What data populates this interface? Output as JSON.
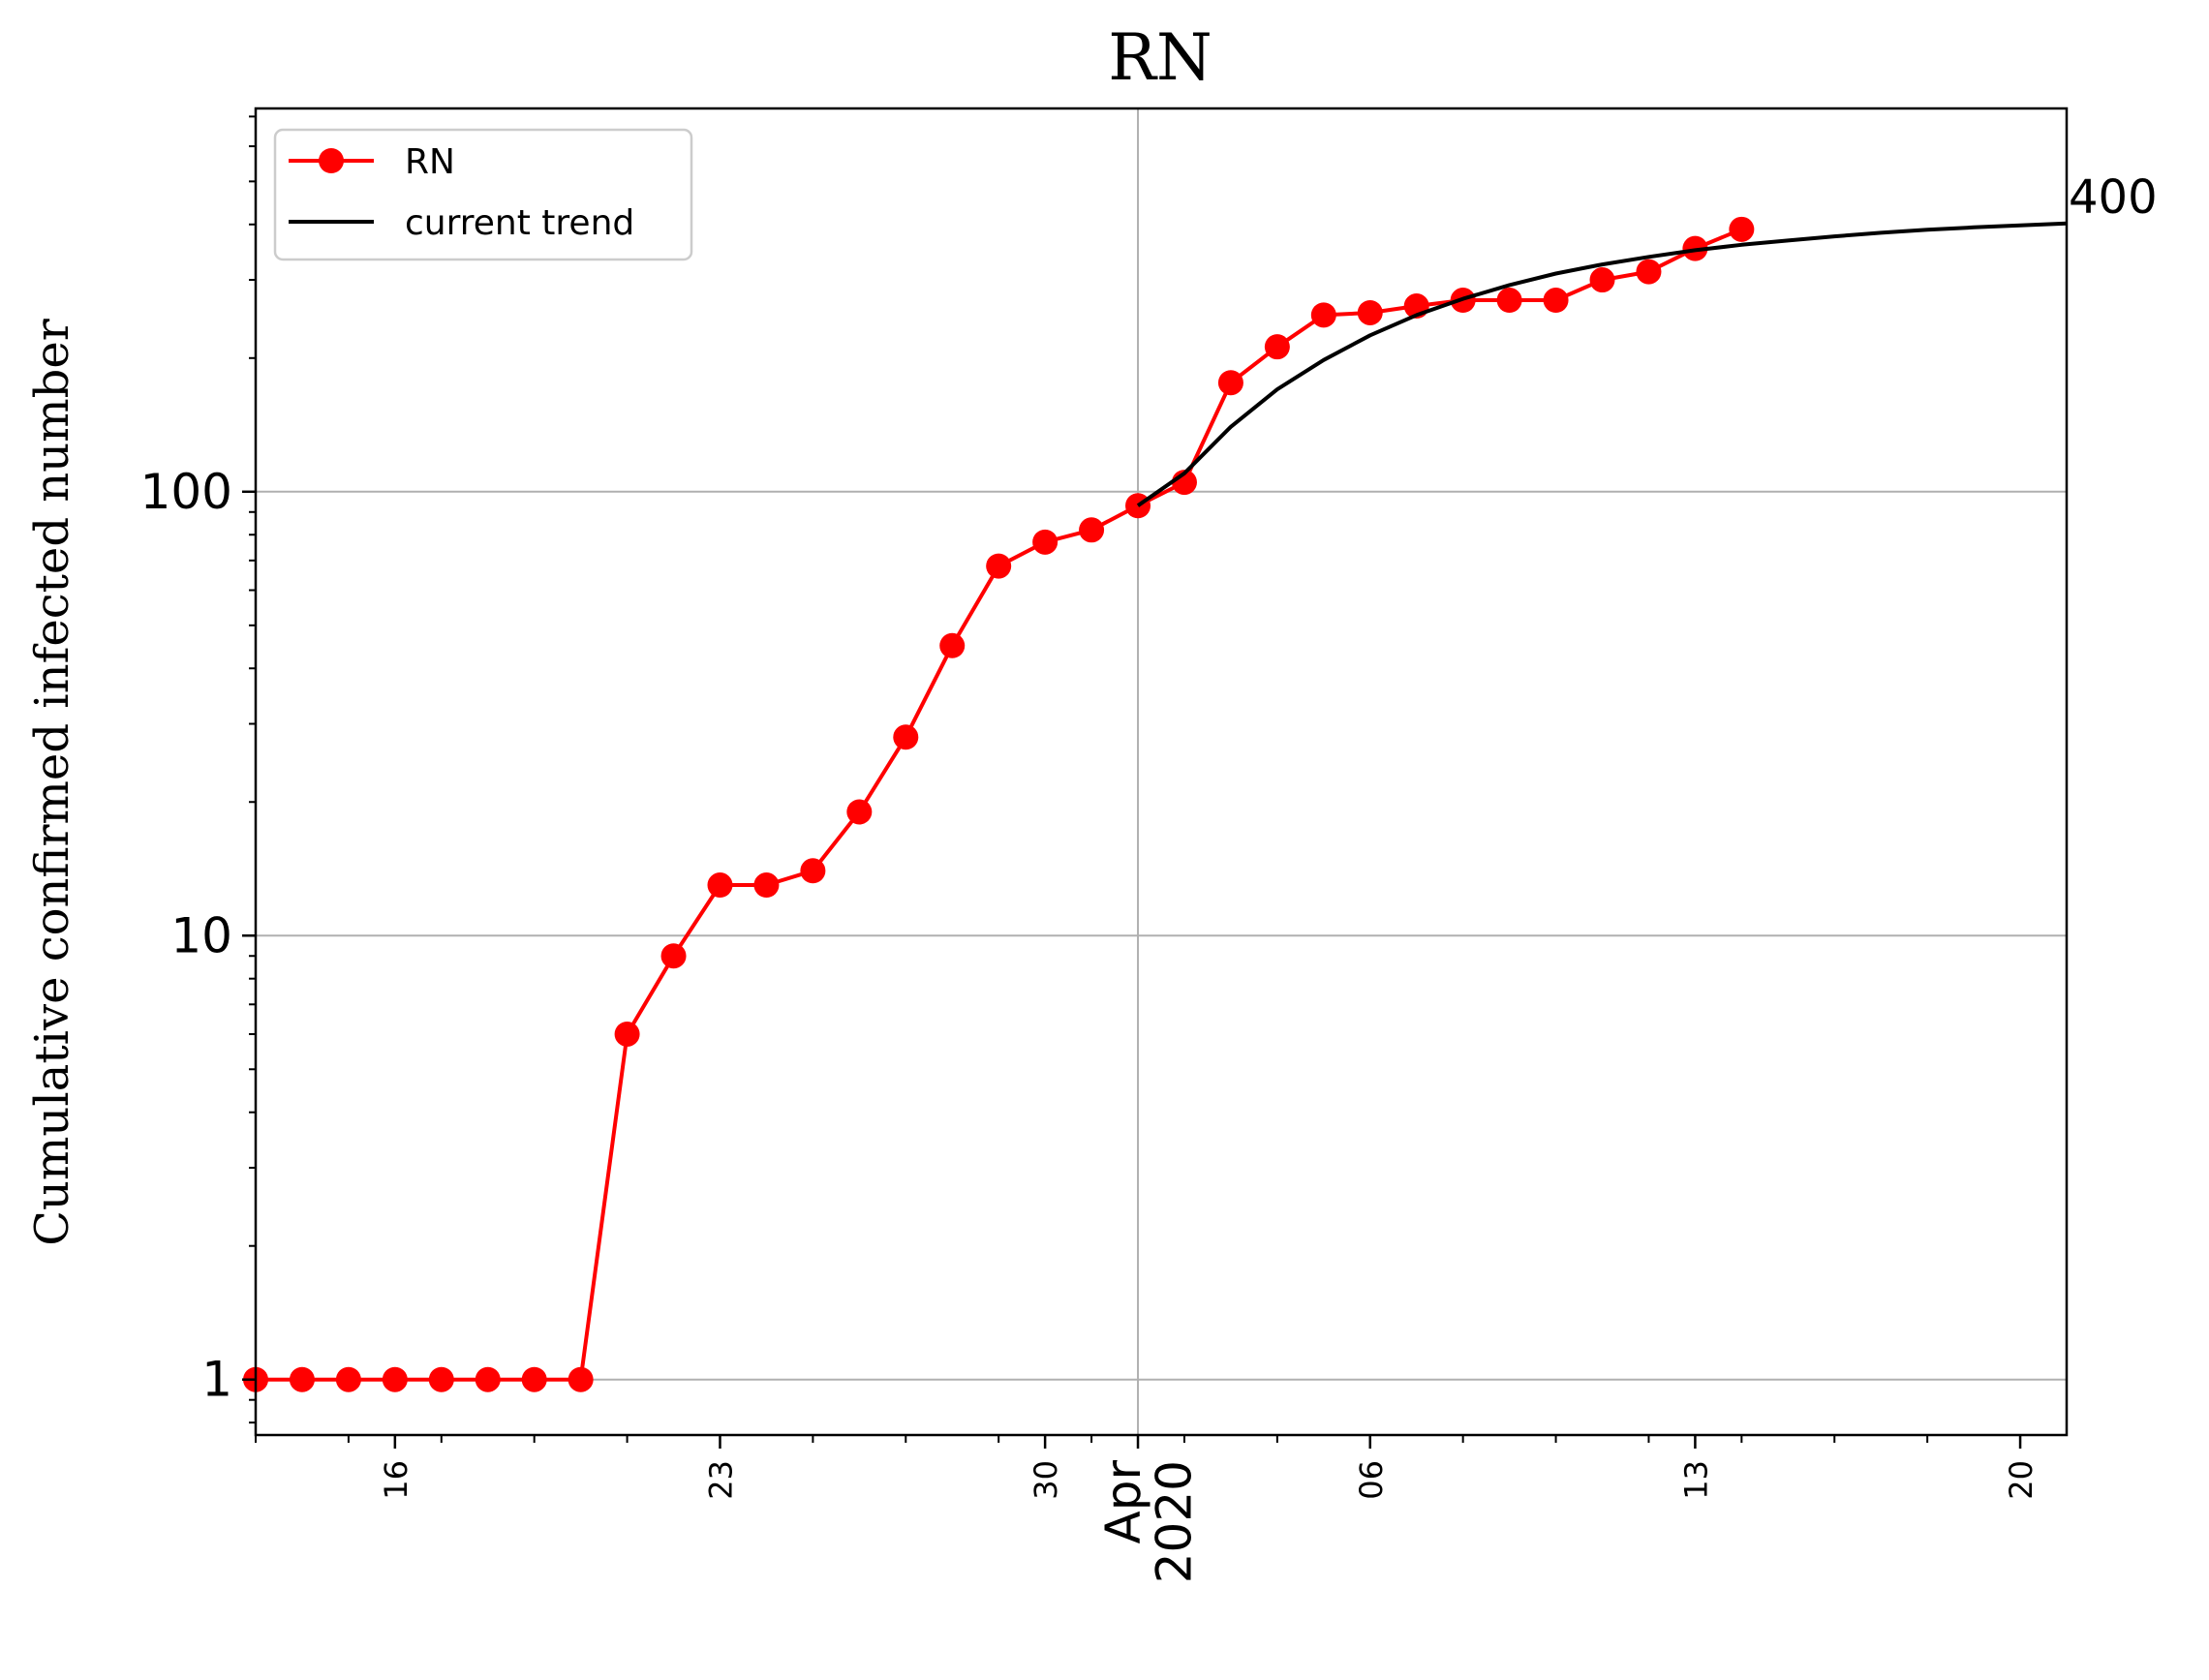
{
  "chart_data": {
    "type": "line",
    "title": "RN",
    "ylabel": "Cumulative confirmed infected number",
    "xlabel": "",
    "y_scale": "log",
    "ylim": [
      0.75,
      730
    ],
    "xlim": [
      "2020-03-13",
      "2020-04-21"
    ],
    "x_tick_labels": [
      {
        "date": "2020-03-16",
        "label": "16"
      },
      {
        "date": "2020-03-23",
        "label": "23"
      },
      {
        "date": "2020-03-30",
        "label": "30"
      },
      {
        "date": "2020-04-01",
        "label": "Apr\n2020"
      },
      {
        "date": "2020-04-06",
        "label": "06"
      },
      {
        "date": "2020-04-13",
        "label": "13"
      },
      {
        "date": "2020-04-20",
        "label": "20"
      }
    ],
    "y_tick_labels": [
      {
        "value": 1,
        "label": "1"
      },
      {
        "value": 10,
        "label": "10"
      },
      {
        "value": 100,
        "label": "100"
      }
    ],
    "grid": true,
    "legend_position": "top-left",
    "annotations": [
      {
        "text": "400",
        "value": 400
      }
    ],
    "series": [
      {
        "name": "RN",
        "color": "#ff0000",
        "marker": "circle",
        "x": [
          "2020-03-13",
          "2020-03-14",
          "2020-03-15",
          "2020-03-16",
          "2020-03-17",
          "2020-03-18",
          "2020-03-19",
          "2020-03-20",
          "2020-03-21",
          "2020-03-22",
          "2020-03-23",
          "2020-03-24",
          "2020-03-25",
          "2020-03-26",
          "2020-03-27",
          "2020-03-28",
          "2020-03-29",
          "2020-03-30",
          "2020-03-31",
          "2020-04-01",
          "2020-04-02",
          "2020-04-03",
          "2020-04-04",
          "2020-04-05",
          "2020-04-06",
          "2020-04-07",
          "2020-04-08",
          "2020-04-09",
          "2020-04-10",
          "2020-04-11",
          "2020-04-12",
          "2020-04-13",
          "2020-04-14"
        ],
        "values": [
          1,
          1,
          1,
          1,
          1,
          1,
          1,
          1,
          6,
          9,
          13,
          13,
          14,
          19,
          28,
          45,
          68,
          77,
          82,
          93,
          105,
          176,
          212,
          250,
          253,
          262,
          270,
          270,
          270,
          300,
          313,
          353,
          390
        ]
      },
      {
        "name": "current trend",
        "color": "#000000",
        "marker": "none",
        "x": [
          "2020-04-01",
          "2020-04-02",
          "2020-04-03",
          "2020-04-04",
          "2020-04-05",
          "2020-04-06",
          "2020-04-07",
          "2020-04-08",
          "2020-04-09",
          "2020-04-10",
          "2020-04-11",
          "2020-04-12",
          "2020-04-13",
          "2020-04-14",
          "2020-04-15",
          "2020-04-16",
          "2020-04-17",
          "2020-04-18",
          "2020-04-19",
          "2020-04-20",
          "2020-04-21"
        ],
        "values": [
          93,
          110,
          140,
          170,
          198,
          225,
          250,
          272,
          292,
          310,
          325,
          338,
          350,
          360,
          368,
          376,
          383,
          389,
          394,
          398,
          402
        ]
      }
    ]
  }
}
